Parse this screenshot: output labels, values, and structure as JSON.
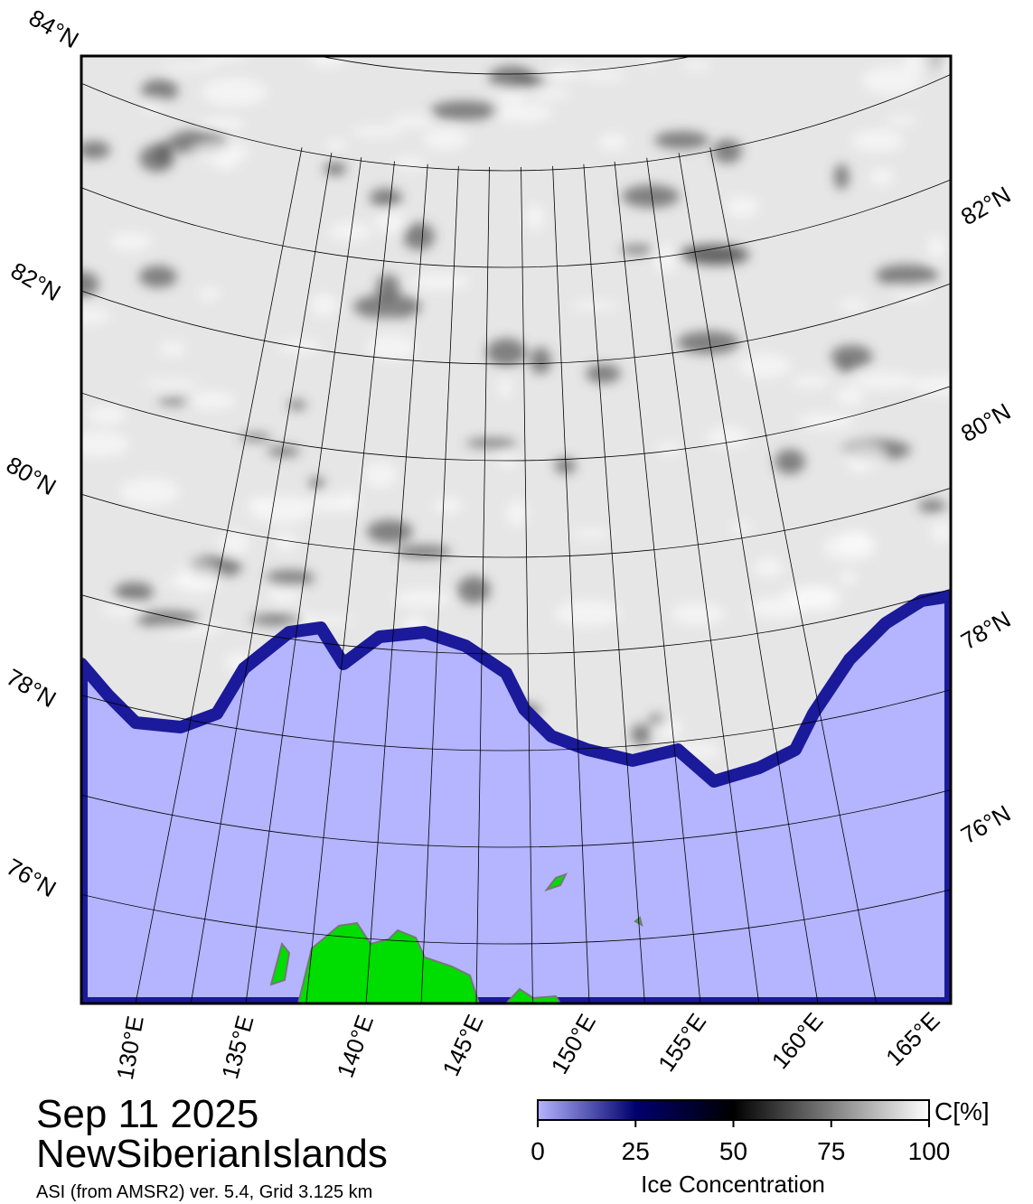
{
  "map": {
    "lat_labels_left": [
      "84°N",
      "82°N",
      "80°N",
      "78°N",
      "76°N"
    ],
    "lat_labels_right": [
      "82°N",
      "80°N",
      "78°N",
      "76°N"
    ],
    "lon_labels": [
      "130°E",
      "135°E",
      "140°E",
      "145°E",
      "150°E",
      "155°E",
      "160°E",
      "165°E"
    ]
  },
  "date": "Sep 11 2025",
  "region": "NewSiberianIslands",
  "source": "ASI (from AMSR2) ver. 5.4,  Grid 3.125 km",
  "colorbar": {
    "unit": "C[%]",
    "label": "Ice Concentration",
    "range": [
      0,
      100
    ],
    "ticks": [
      0,
      25,
      50,
      75,
      100
    ]
  }
}
